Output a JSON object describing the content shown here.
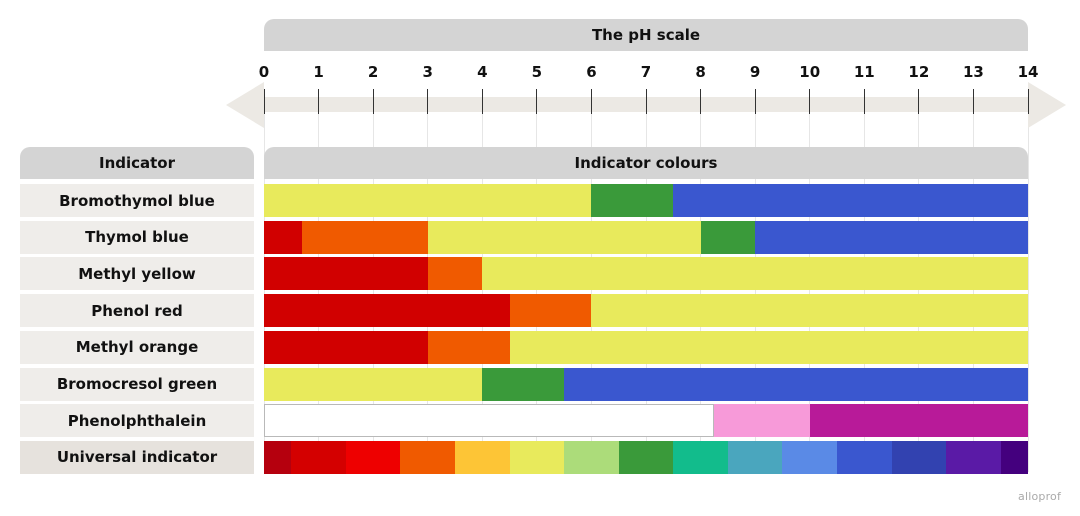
{
  "scale": {
    "title": "The pH scale",
    "ticks": [
      "0",
      "1",
      "2",
      "3",
      "4",
      "5",
      "6",
      "7",
      "8",
      "9",
      "10",
      "11",
      "12",
      "13",
      "14"
    ]
  },
  "table": {
    "indicator_header": "Indicator",
    "colours_header": "Indicator colours"
  },
  "colors": {
    "deep_red": "#d10000",
    "orange": "#f05a00",
    "yellow": "#e8ea5c",
    "green": "#3a9a3a",
    "blue": "#3a57cf",
    "white": "#ffffff",
    "pink": "#f79ad9",
    "magenta": "#b81a99"
  },
  "indicators": [
    {
      "name": "Bromothymol blue",
      "segments": [
        {
          "from": 0,
          "to": 6,
          "color": "#e8ea5c"
        },
        {
          "from": 6,
          "to": 7.5,
          "color": "#3a9a3a"
        },
        {
          "from": 7.5,
          "to": 14,
          "color": "#3a57cf"
        }
      ]
    },
    {
      "name": "Thymol blue",
      "segments": [
        {
          "from": 0,
          "to": 0.7,
          "color": "#d10000"
        },
        {
          "from": 0.7,
          "to": 3,
          "color": "#f05a00"
        },
        {
          "from": 3,
          "to": 8,
          "color": "#e8ea5c"
        },
        {
          "from": 8,
          "to": 9,
          "color": "#3a9a3a"
        },
        {
          "from": 9,
          "to": 14,
          "color": "#3a57cf"
        }
      ]
    },
    {
      "name": "Methyl yellow",
      "segments": [
        {
          "from": 0,
          "to": 3,
          "color": "#d10000"
        },
        {
          "from": 3,
          "to": 4,
          "color": "#f05a00"
        },
        {
          "from": 4,
          "to": 14,
          "color": "#e8ea5c"
        }
      ]
    },
    {
      "name": "Phenol red",
      "segments": [
        {
          "from": 0,
          "to": 4.5,
          "color": "#d10000"
        },
        {
          "from": 4.5,
          "to": 6,
          "color": "#f05a00"
        },
        {
          "from": 6,
          "to": 14,
          "color": "#e8ea5c"
        }
      ]
    },
    {
      "name": "Methyl orange",
      "segments": [
        {
          "from": 0,
          "to": 3,
          "color": "#d10000"
        },
        {
          "from": 3,
          "to": 4.5,
          "color": "#f05a00"
        },
        {
          "from": 4.5,
          "to": 14,
          "color": "#e8ea5c"
        }
      ]
    },
    {
      "name": "Bromocresol green",
      "segments": [
        {
          "from": 0,
          "to": 4,
          "color": "#e8ea5c"
        },
        {
          "from": 4,
          "to": 5.5,
          "color": "#3a9a3a"
        },
        {
          "from": 5.5,
          "to": 14,
          "color": "#3a57cf"
        }
      ]
    },
    {
      "name": "Phenolphthalein",
      "segments": [
        {
          "from": 0,
          "to": 8.25,
          "color": "#ffffff"
        },
        {
          "from": 8.25,
          "to": 10,
          "color": "#f79ad9"
        },
        {
          "from": 10,
          "to": 14,
          "color": "#b81a99"
        }
      ]
    },
    {
      "name": "Universal indicator",
      "segments": [
        {
          "from": 0,
          "to": 0.5,
          "color": "#b5000e"
        },
        {
          "from": 0.5,
          "to": 1.5,
          "color": "#d40000"
        },
        {
          "from": 1.5,
          "to": 2.5,
          "color": "#ee0000"
        },
        {
          "from": 2.5,
          "to": 3.5,
          "color": "#f05a00"
        },
        {
          "from": 3.5,
          "to": 4.5,
          "color": "#fdc536"
        },
        {
          "from": 4.5,
          "to": 5.5,
          "color": "#e8ea5c"
        },
        {
          "from": 5.5,
          "to": 6.5,
          "color": "#acdc7a"
        },
        {
          "from": 6.5,
          "to": 7.5,
          "color": "#3a9a3a"
        },
        {
          "from": 7.5,
          "to": 8.5,
          "color": "#12bc8c"
        },
        {
          "from": 8.5,
          "to": 9.5,
          "color": "#4aa6be"
        },
        {
          "from": 9.5,
          "to": 10.5,
          "color": "#5a8ae6"
        },
        {
          "from": 10.5,
          "to": 11.5,
          "color": "#3a57cf"
        },
        {
          "from": 11.5,
          "to": 12.5,
          "color": "#3242b0"
        },
        {
          "from": 12.5,
          "to": 13.5,
          "color": "#5a1aa6"
        },
        {
          "from": 13.5,
          "to": 14,
          "color": "#44007e"
        }
      ]
    }
  ],
  "watermark": "alloprof"
}
